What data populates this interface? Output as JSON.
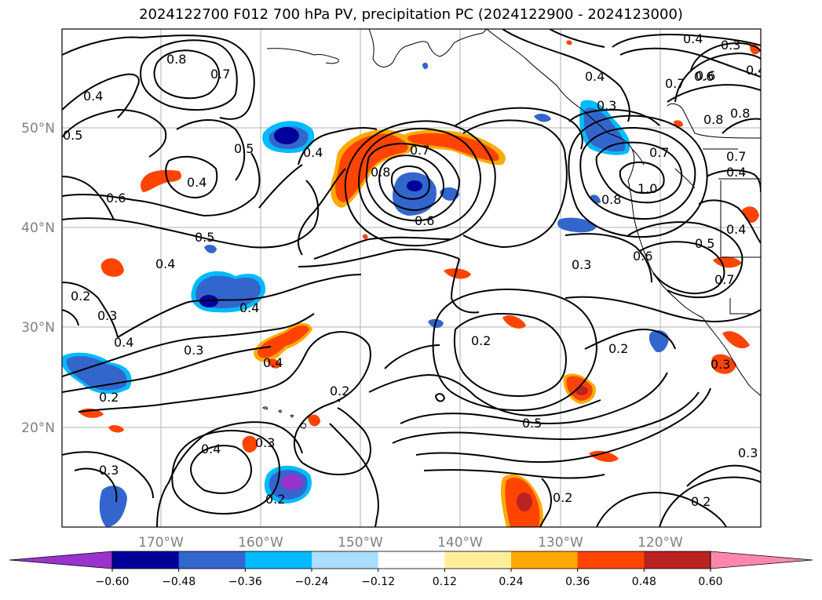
{
  "title": "2024122700 F012 700 hPa PV, precipitation PC (2024122900 - 2024123000)",
  "axes": {
    "lat_labels": [
      "50°N",
      "40°N",
      "30°N",
      "20°N"
    ],
    "lon_labels": [
      "170°W",
      "160°W",
      "150°W",
      "140°W",
      "130°W",
      "120°W"
    ]
  },
  "colorbar": {
    "colors": [
      "#9933cc",
      "#000099",
      "#3366cc",
      "#00bbff",
      "#aaddff",
      "#ffffff",
      "#ffee99",
      "#ffaa00",
      "#ff4400",
      "#bb2222",
      "#ff88aa"
    ],
    "tick_labels": [
      "−0.60",
      "−0.48",
      "−0.36",
      "−0.24",
      "−0.12",
      "0.12",
      "0.24",
      "0.36",
      "0.48",
      "0.60"
    ]
  },
  "contour_labels": [
    "0.8",
    "0.7",
    "0.4",
    "0.5",
    "0.5",
    "0.4",
    "0.6",
    "0.4",
    "0.8",
    "0.7",
    "0.6",
    "0.5",
    "0.4",
    "0.4",
    "0.2",
    "0.3",
    "0.4",
    "0.3",
    "0.4",
    "0.2",
    "0.3",
    "0.4",
    "0.3",
    "0.2",
    "0.2",
    "0.2",
    "0.5",
    "0.3",
    "0.2",
    "0.2",
    "0.4",
    "0.3",
    "0.4",
    "0.6",
    "0.7",
    "0.8",
    "0.7",
    "1.0",
    "0.8",
    "0.6",
    "0.5",
    "0.4",
    "0.7",
    "0.4",
    "0.3",
    "0.6",
    "0.8",
    "0.7",
    "0.4",
    "0.3",
    "0.2",
    "0.3"
  ],
  "colors": {
    "contour": "#000000",
    "grid": "#b0b0b0",
    "coast": "#000000"
  }
}
